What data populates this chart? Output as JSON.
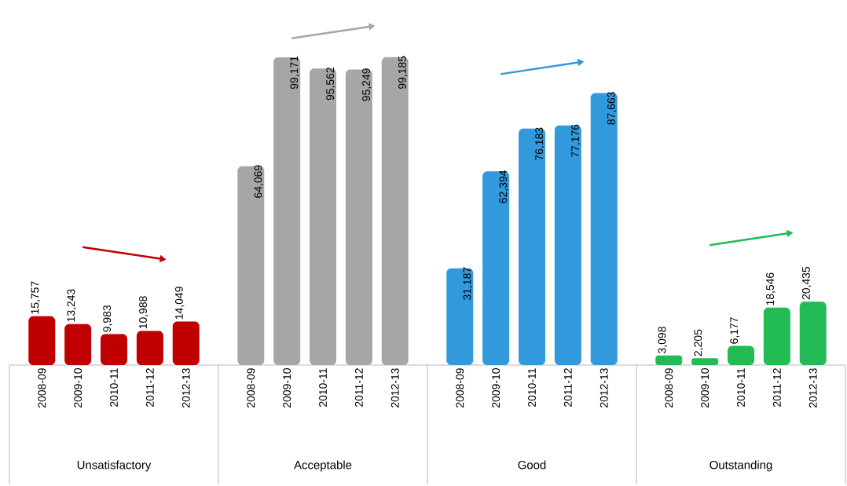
{
  "chart_data": [
    {
      "type": "bar",
      "categories": [
        "2008-09",
        "2009-10",
        "2010-11",
        "2011-12",
        "2012-13"
      ],
      "values": [
        15757,
        13243,
        9983,
        10988,
        14049
      ],
      "value_labels": [
        "15,757",
        "13,243",
        "9,983",
        "10,988",
        "14,049"
      ],
      "color": "#c00000",
      "xlabel": "Unsatisfactory",
      "tick_labels": "x"
    },
    {
      "type": "bar",
      "categories": [
        "2008-09",
        "2009-10",
        "2010-11",
        "2011-12",
        "2012-13"
      ],
      "values": [
        64069,
        99171,
        95562,
        95249,
        99185
      ],
      "value_labels": [
        "64,069",
        "99,171",
        "95,562",
        "95,249",
        "99,185"
      ],
      "color": "#a6a6a6",
      "xlabel": "Acceptable",
      "tick_labels": "x"
    },
    {
      "type": "bar",
      "categories": [
        "2008-09",
        "2009-10",
        "2010-11",
        "2011-12",
        "2012-13"
      ],
      "values": [
        31187,
        62394,
        76183,
        77176,
        87663
      ],
      "value_labels": [
        "31,187",
        "62,394",
        "76,183",
        "77,176",
        "87,663"
      ],
      "color": "#3399dd",
      "xlabel": "Good",
      "tick_labels": "x"
    },
    {
      "type": "bar",
      "categories": [
        "2008-09",
        "2009-10",
        "2010-11",
        "2011-12",
        "2012-13"
      ],
      "values": [
        3098,
        2205,
        6177,
        18546,
        20435
      ],
      "value_labels": [
        "3,098",
        "2,205",
        "6,177",
        "18,546",
        "20,435"
      ],
      "color": "#22bb55",
      "xlabel": "Outstanding",
      "tick_labels": "x"
    }
  ]
}
